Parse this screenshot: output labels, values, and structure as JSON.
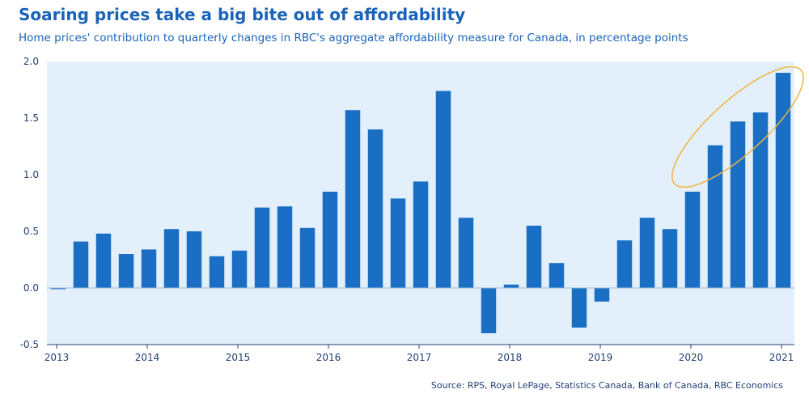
{
  "chart_data": {
    "type": "bar",
    "title": "Soaring prices take a big bite out of affordability",
    "subtitle": "Home prices' contribution to quarterly changes in RBC's aggregate affordability measure for Canada, in percentage points",
    "source": "Source: RPS, Royal LePage, Statistics Canada, Bank of Canada, RBC Economics",
    "ylim": [
      -0.5,
      2.0
    ],
    "yticks": [
      "2.0",
      "1.5",
      "1.0",
      "0.5",
      "0.0",
      "-0.5"
    ],
    "xtick_labels": [
      "2013",
      "2014",
      "2015",
      "2016",
      "2017",
      "2018",
      "2019",
      "2020",
      "2021"
    ],
    "categories": [
      "2013 Q1",
      "2013 Q2",
      "2013 Q3",
      "2013 Q4",
      "2014 Q1",
      "2014 Q2",
      "2014 Q3",
      "2014 Q4",
      "2015 Q1",
      "2015 Q2",
      "2015 Q3",
      "2015 Q4",
      "2016 Q1",
      "2016 Q2",
      "2016 Q3",
      "2016 Q4",
      "2017 Q1",
      "2017 Q2",
      "2017 Q3",
      "2017 Q4",
      "2018 Q1",
      "2018 Q2",
      "2018 Q3",
      "2018 Q4",
      "2019 Q1",
      "2019 Q2",
      "2019 Q3",
      "2019 Q4",
      "2020 Q1",
      "2020 Q2",
      "2020 Q3",
      "2020 Q4",
      "2021 Q1"
    ],
    "values": [
      -0.01,
      0.41,
      0.48,
      0.3,
      0.34,
      0.52,
      0.5,
      0.28,
      0.33,
      0.71,
      0.72,
      0.53,
      0.85,
      1.57,
      1.4,
      0.79,
      0.94,
      1.74,
      0.62,
      -0.4,
      0.03,
      0.55,
      0.22,
      -0.35,
      -0.12,
      0.42,
      0.62,
      0.52,
      0.85,
      1.26,
      1.47,
      1.55,
      1.9
    ],
    "colors": {
      "bar": "#1a6fc4",
      "plot_background": "#e3f0fb",
      "axis": "#1f3f73",
      "highlight_ellipse": "#f0b440",
      "title": "#1a63b8"
    },
    "annotations": [
      "highlight ellipse around most recent quarters (2020 onward)"
    ],
    "grid": false
  }
}
